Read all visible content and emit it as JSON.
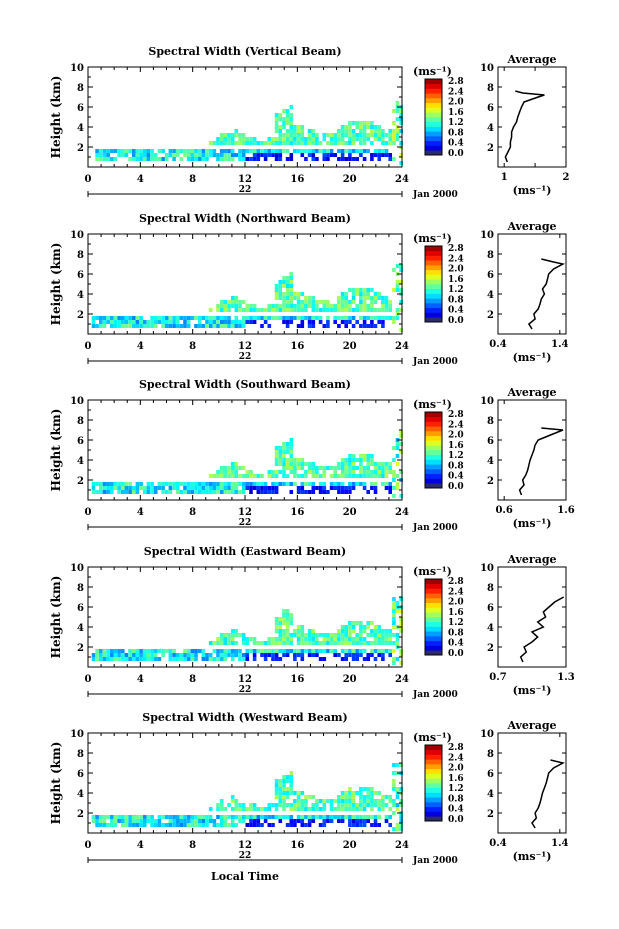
{
  "figure": {
    "xlabel": "Local Time",
    "date_label": "Jan 2000",
    "day_label": "22"
  },
  "chart_data": [
    {
      "type": "heatmap",
      "title": "Spectral Width (Vertical Beam)",
      "ylabel": "Height (km)",
      "xlim": [
        0,
        24
      ],
      "ylim": [
        0,
        10
      ],
      "xticks": [
        0,
        4,
        8,
        12,
        16,
        20,
        24
      ],
      "yticks": [
        2,
        4,
        6,
        8,
        10
      ],
      "colorbar": {
        "unit": "(ms⁻¹)",
        "ticks": [
          "0.0",
          "0.4",
          "0.8",
          "1.2",
          "1.6",
          "2.0",
          "2.4",
          "2.8"
        ],
        "range": [
          0,
          2.8
        ]
      },
      "average": {
        "title": "Average",
        "xlabel": "(ms⁻¹)",
        "xlim": [
          0.9,
          2.0
        ],
        "xticks": [
          1,
          1.5,
          2
        ],
        "xticklabels": [
          "1",
          "",
          "2"
        ],
        "ylim": [
          0,
          10
        ],
        "yticks": [
          2,
          4,
          6,
          8,
          10
        ],
        "profile": [
          [
            0.5,
            1.05
          ],
          [
            1,
            1.02
          ],
          [
            1.5,
            1.06
          ],
          [
            2,
            1.1
          ],
          [
            2.5,
            1.1
          ],
          [
            3,
            1.12
          ],
          [
            3.5,
            1.12
          ],
          [
            4,
            1.15
          ],
          [
            4.5,
            1.2
          ],
          [
            5,
            1.22
          ],
          [
            5.5,
            1.25
          ],
          [
            6,
            1.28
          ],
          [
            6.5,
            1.32
          ],
          [
            7,
            1.55
          ],
          [
            7.2,
            1.65
          ],
          [
            7.4,
            1.3
          ],
          [
            7.6,
            1.18
          ]
        ]
      }
    },
    {
      "type": "heatmap",
      "title": "Spectral Width (Northward Beam)",
      "ylabel": "Height (km)",
      "xlim": [
        0,
        24
      ],
      "ylim": [
        0,
        10
      ],
      "xticks": [
        0,
        4,
        8,
        12,
        16,
        20,
        24
      ],
      "yticks": [
        2,
        4,
        6,
        8,
        10
      ],
      "colorbar": {
        "unit": "(ms⁻¹)",
        "ticks": [
          "0.0",
          "0.4",
          "0.8",
          "1.2",
          "1.6",
          "2.0",
          "2.4",
          "2.8"
        ],
        "range": [
          0,
          2.8
        ]
      },
      "average": {
        "title": "Average",
        "xlabel": "(ms⁻¹)",
        "xlim": [
          0.4,
          1.5
        ],
        "xticks": [
          0.4,
          1.4
        ],
        "xticklabels": [
          "0.4",
          "1.4"
        ],
        "ylim": [
          0,
          10
        ],
        "yticks": [
          2,
          4,
          6,
          8,
          10
        ],
        "profile": [
          [
            0.5,
            0.95
          ],
          [
            1,
            0.9
          ],
          [
            1.5,
            1.0
          ],
          [
            2,
            0.98
          ],
          [
            2.5,
            1.05
          ],
          [
            3,
            1.08
          ],
          [
            3.5,
            1.1
          ],
          [
            4,
            1.15
          ],
          [
            4.5,
            1.12
          ],
          [
            5,
            1.18
          ],
          [
            5.5,
            1.2
          ],
          [
            6,
            1.22
          ],
          [
            6.5,
            1.3
          ],
          [
            7,
            1.45
          ],
          [
            7.2,
            1.3
          ],
          [
            7.5,
            1.1
          ]
        ]
      }
    },
    {
      "type": "heatmap",
      "title": "Spectral Width (Southward Beam)",
      "ylabel": "Height (km)",
      "xlim": [
        0,
        24
      ],
      "ylim": [
        0,
        10
      ],
      "xticks": [
        0,
        4,
        8,
        12,
        16,
        20,
        24
      ],
      "yticks": [
        2,
        4,
        6,
        8,
        10
      ],
      "colorbar": {
        "unit": "(ms⁻¹)",
        "ticks": [
          "0.0",
          "0.4",
          "0.8",
          "1.2",
          "1.6",
          "2.0",
          "2.4",
          "2.8"
        ],
        "range": [
          0,
          2.8
        ]
      },
      "average": {
        "title": "Average",
        "xlabel": "(ms⁻¹)",
        "xlim": [
          0.5,
          1.6
        ],
        "xticks": [
          0.6,
          1.6
        ],
        "xticklabels": [
          "0.6",
          "1.6"
        ],
        "ylim": [
          0,
          10
        ],
        "yticks": [
          2,
          4,
          6,
          8,
          10
        ],
        "profile": [
          [
            0.5,
            0.88
          ],
          [
            1,
            0.85
          ],
          [
            1.5,
            0.92
          ],
          [
            2,
            0.9
          ],
          [
            2.5,
            0.95
          ],
          [
            3,
            0.98
          ],
          [
            3.5,
            1.0
          ],
          [
            4,
            1.02
          ],
          [
            4.5,
            1.05
          ],
          [
            5,
            1.08
          ],
          [
            5.5,
            1.1
          ],
          [
            6,
            1.15
          ],
          [
            6.5,
            1.35
          ],
          [
            7,
            1.55
          ],
          [
            7.2,
            1.2
          ]
        ]
      }
    },
    {
      "type": "heatmap",
      "title": "Spectral Width (Eastward Beam)",
      "ylabel": "Height (km)",
      "xlim": [
        0,
        24
      ],
      "ylim": [
        0,
        10
      ],
      "xticks": [
        0,
        4,
        8,
        12,
        16,
        20,
        24
      ],
      "yticks": [
        2,
        4,
        6,
        8,
        10
      ],
      "colorbar": {
        "unit": "(ms⁻¹)",
        "ticks": [
          "0.0",
          "0.4",
          "0.8",
          "1.2",
          "1.6",
          "2.0",
          "2.4",
          "2.8"
        ],
        "range": [
          0,
          2.8
        ]
      },
      "average": {
        "title": "Average",
        "xlabel": "(ms⁻¹)",
        "xlim": [
          0.7,
          1.3
        ],
        "xticks": [
          0.7,
          1.3
        ],
        "xticklabels": [
          "0.7",
          "1.3"
        ],
        "ylim": [
          0,
          10
        ],
        "yticks": [
          2,
          4,
          6,
          8,
          10
        ],
        "profile": [
          [
            0.5,
            0.92
          ],
          [
            1,
            0.9
          ],
          [
            1.5,
            0.95
          ],
          [
            2,
            0.93
          ],
          [
            2.5,
            1.0
          ],
          [
            3,
            1.05
          ],
          [
            3.5,
            1.0
          ],
          [
            4,
            1.1
          ],
          [
            4.5,
            1.05
          ],
          [
            5,
            1.12
          ],
          [
            5.5,
            1.1
          ],
          [
            6,
            1.15
          ],
          [
            6.5,
            1.2
          ],
          [
            7,
            1.28
          ]
        ]
      }
    },
    {
      "type": "heatmap",
      "title": "Spectral Width (Westward Beam)",
      "ylabel": "Height (km)",
      "xlim": [
        0,
        24
      ],
      "ylim": [
        0,
        10
      ],
      "xticks": [
        0,
        4,
        8,
        12,
        16,
        20,
        24
      ],
      "yticks": [
        2,
        4,
        6,
        8,
        10
      ],
      "colorbar": {
        "unit": "(ms⁻¹)",
        "ticks": [
          "0.0",
          "0.4",
          "0.8",
          "1.2",
          "1.6",
          "2.0",
          "2.4",
          "2.8"
        ],
        "range": [
          0,
          2.8
        ]
      },
      "average": {
        "title": "Average",
        "xlabel": "(ms⁻¹)",
        "xlim": [
          0.4,
          1.5
        ],
        "xticks": [
          0.4,
          1.4
        ],
        "xticklabels": [
          "0.4",
          "1.4"
        ],
        "ylim": [
          0,
          10
        ],
        "yticks": [
          2,
          4,
          6,
          8,
          10
        ],
        "profile": [
          [
            0.5,
            1.0
          ],
          [
            1,
            0.95
          ],
          [
            1.5,
            1.02
          ],
          [
            2,
            1.0
          ],
          [
            2.5,
            1.05
          ],
          [
            3,
            1.08
          ],
          [
            3.5,
            1.1
          ],
          [
            4,
            1.12
          ],
          [
            4.5,
            1.15
          ],
          [
            5,
            1.18
          ],
          [
            5.5,
            1.2
          ],
          [
            6,
            1.22
          ],
          [
            6.5,
            1.3
          ],
          [
            7,
            1.45
          ],
          [
            7.3,
            1.25
          ]
        ]
      }
    }
  ]
}
